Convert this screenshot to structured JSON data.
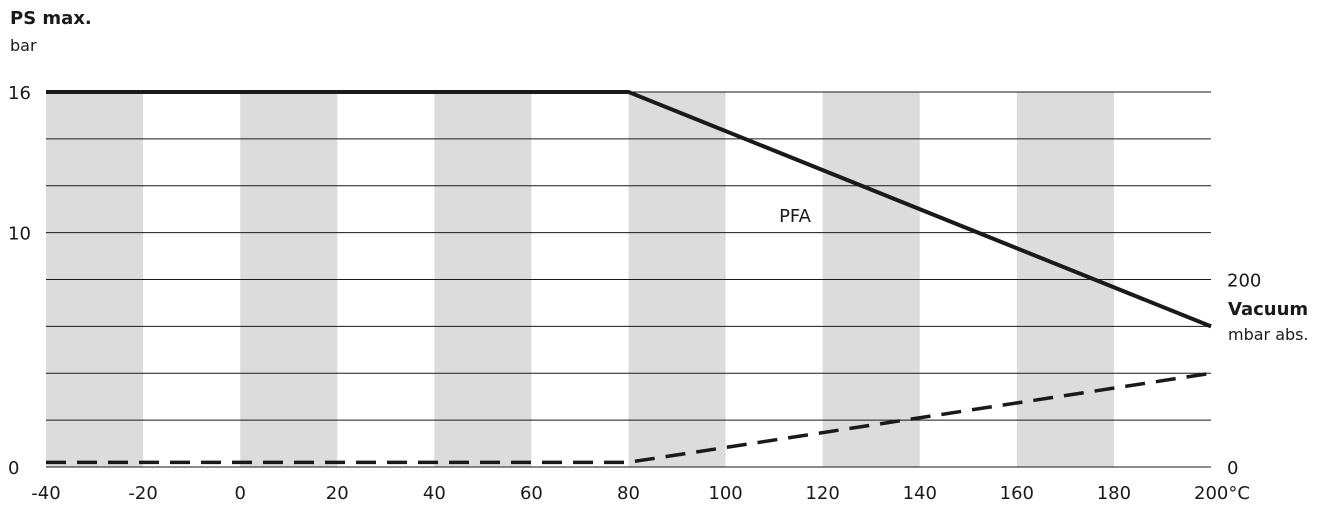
{
  "chart_data": {
    "type": "line",
    "title": "",
    "y_axis": {
      "label": "PS max.",
      "unit": "bar",
      "ticks": [
        "16",
        "10",
        "0"
      ],
      "ylim": [
        0,
        16
      ]
    },
    "y2_axis": {
      "label": "Vacuum",
      "unit": "mbar abs.",
      "ticks": [
        "200",
        "0"
      ],
      "ylim": [
        0,
        400
      ]
    },
    "x_axis": {
      "ticks": [
        "-40",
        "-20",
        "0",
        "20",
        "40",
        "60",
        "80",
        "100",
        "120",
        "140",
        "160",
        "180",
        "200°C"
      ],
      "xlim": [
        -40,
        200
      ]
    },
    "grid": {
      "horizontal_lines": true,
      "vertical_bands": true,
      "band_color": "#dcdcdc"
    },
    "series": [
      {
        "name": "PFA",
        "style": "solid",
        "axis": "left",
        "color": "#1a1a1a",
        "x": [
          -40,
          80,
          200
        ],
        "y": [
          16,
          16,
          6
        ]
      },
      {
        "name": "",
        "style": "dashed",
        "axis": "right",
        "color": "#1a1a1a",
        "x": [
          -40,
          80,
          200
        ],
        "y": [
          5,
          5,
          100
        ]
      }
    ]
  }
}
